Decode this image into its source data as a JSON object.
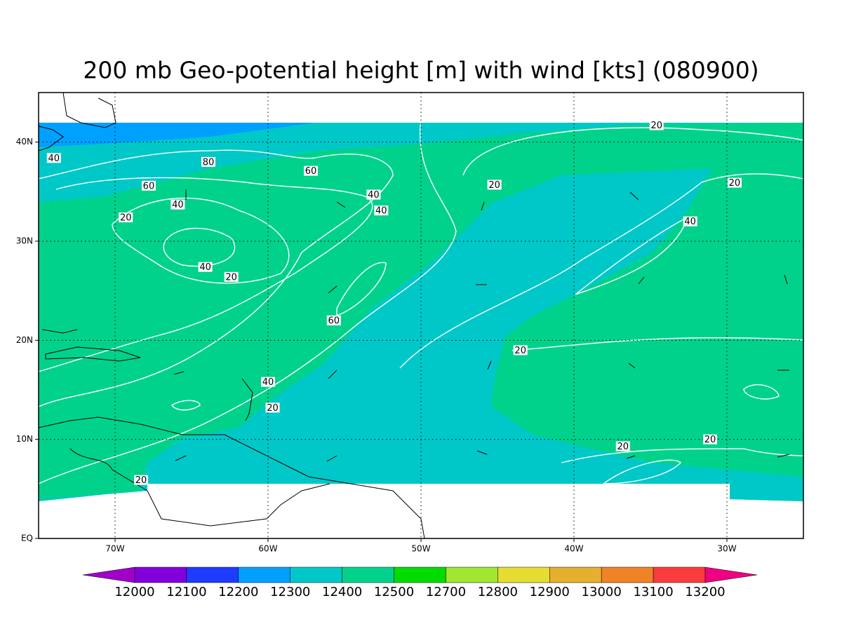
{
  "title": "200 mb Geo-potential height [m] with wind [kts] (080900)",
  "map": {
    "xlim": [
      -75,
      -25
    ],
    "ylim": [
      0,
      45
    ],
    "grid": true,
    "xticks": [
      {
        "value": -70,
        "label": "70W"
      },
      {
        "value": -60,
        "label": "60W"
      },
      {
        "value": -50,
        "label": "50W"
      },
      {
        "value": -40,
        "label": "40W"
      },
      {
        "value": -30,
        "label": "30W"
      }
    ],
    "yticks": [
      {
        "value": 0,
        "label": "EQ"
      },
      {
        "value": 10,
        "label": "10N"
      },
      {
        "value": 20,
        "label": "20N"
      },
      {
        "value": 30,
        "label": "30N"
      },
      {
        "value": 40,
        "label": "40N"
      }
    ],
    "contour_labels": [
      {
        "value": 20,
        "lon": -34.6,
        "lat": 41.7
      },
      {
        "value": 40,
        "lon": -74.0,
        "lat": 38.4
      },
      {
        "value": 80,
        "lon": -63.9,
        "lat": 38.0
      },
      {
        "value": 60,
        "lon": -57.2,
        "lat": 37.1
      },
      {
        "value": 60,
        "lon": -67.8,
        "lat": 35.6
      },
      {
        "value": 20,
        "lon": -45.2,
        "lat": 35.7
      },
      {
        "value": 20,
        "lon": -29.5,
        "lat": 35.9
      },
      {
        "value": 40,
        "lon": -53.1,
        "lat": 34.7
      },
      {
        "value": 40,
        "lon": -65.9,
        "lat": 33.7
      },
      {
        "value": 40,
        "lon": -52.6,
        "lat": 33.1
      },
      {
        "value": 20,
        "lon": -69.3,
        "lat": 32.4
      },
      {
        "value": 40,
        "lon": -32.4,
        "lat": 32.0
      },
      {
        "value": 40,
        "lon": -64.1,
        "lat": 27.4
      },
      {
        "value": 20,
        "lon": -62.4,
        "lat": 26.4
      },
      {
        "value": 60,
        "lon": -55.7,
        "lat": 22.0
      },
      {
        "value": 20,
        "lon": -43.5,
        "lat": 19.0
      },
      {
        "value": 40,
        "lon": -60.0,
        "lat": 15.8
      },
      {
        "value": 20,
        "lon": -59.7,
        "lat": 13.2
      },
      {
        "value": 20,
        "lon": -36.8,
        "lat": 9.3
      },
      {
        "value": 20,
        "lon": -31.1,
        "lat": 10.0
      },
      {
        "value": 20,
        "lon": -68.3,
        "lat": 5.9
      }
    ]
  },
  "colorbar": {
    "levels": [
      12000,
      12100,
      12200,
      12300,
      12400,
      12500,
      12700,
      12800,
      12900,
      13000,
      13100,
      13200
    ],
    "colors": [
      "#a000c8",
      "#8200dc",
      "#1e3cff",
      "#00a0ff",
      "#00c8c8",
      "#00d28c",
      "#00dc00",
      "#a0e632",
      "#e6dc32",
      "#e6af2d",
      "#f08228",
      "#fa3c3c",
      "#f00082"
    ]
  }
}
